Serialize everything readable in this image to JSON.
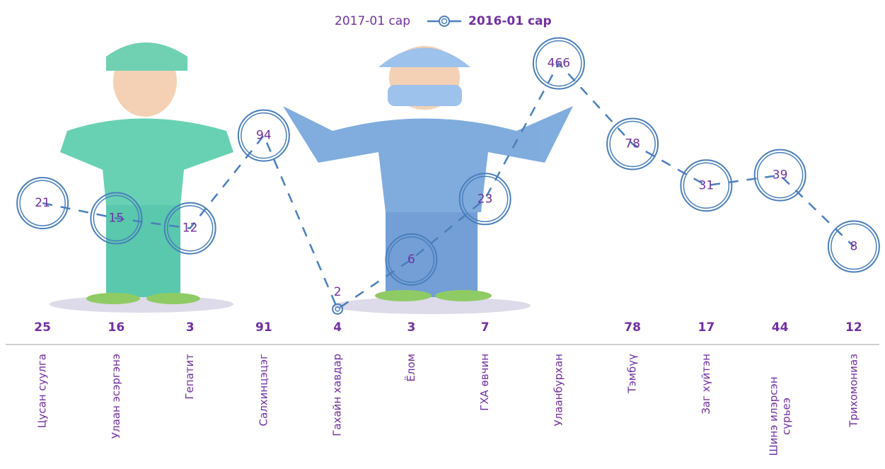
{
  "chart_data": {
    "type": "line",
    "categories": [
      "Цусан суулга",
      "Улаан эсэргэнэ",
      "Гепатит",
      "Салхинцэцэг",
      "Гахайн хавдар",
      "Ёлом",
      "ГХА өвчин",
      "Улаанбурхан",
      "Тэмбүү",
      "Заг хүйтэн",
      "Шинэ илэрсэн сүрьеэ",
      "Трихомониаз"
    ],
    "series": [
      {
        "name": "2017-01 сар",
        "color": "#7030a0",
        "values": [
          25,
          16,
          3,
          91,
          4,
          3,
          7,
          null,
          78,
          17,
          44,
          12
        ]
      },
      {
        "name": "2016-01 сар",
        "color": "#4a7ebb",
        "values": [
          21,
          15,
          12,
          94,
          2,
          6,
          23,
          466,
          78,
          31,
          39,
          8
        ]
      }
    ],
    "log_scale": true,
    "ylim": [
      1,
      1000
    ]
  }
}
